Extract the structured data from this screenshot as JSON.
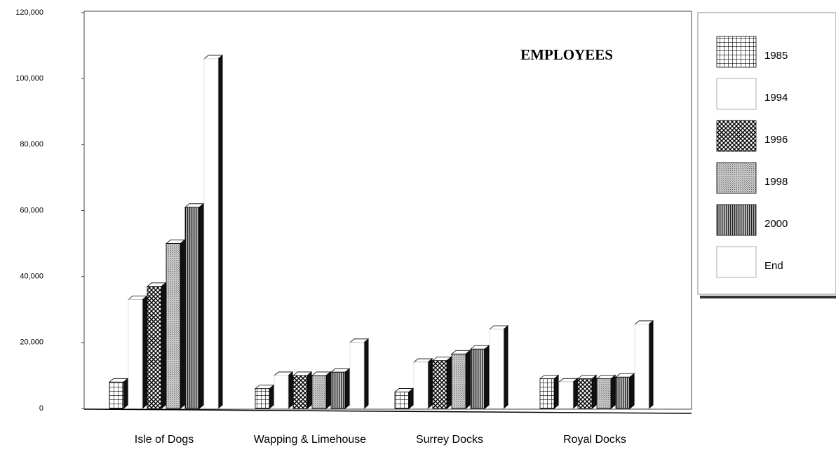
{
  "chart_data": {
    "type": "bar3d",
    "title": "EMPLOYEES",
    "categories": [
      "Isle of Dogs",
      "Wapping & Limehouse",
      "Surrey Docks",
      "Royal Docks"
    ],
    "series": [
      {
        "name": "1985",
        "pattern": "grid",
        "values": [
          8000,
          6000,
          5000,
          9000
        ]
      },
      {
        "name": "1994",
        "pattern": "none",
        "values": [
          33000,
          10000,
          14000,
          8000
        ]
      },
      {
        "name": "1996",
        "pattern": "crosshatch",
        "values": [
          37000,
          10000,
          14500,
          9000
        ]
      },
      {
        "name": "1998",
        "pattern": "stipple",
        "values": [
          50000,
          10000,
          16500,
          9000
        ]
      },
      {
        "name": "2000",
        "pattern": "vstripes",
        "values": [
          61000,
          11000,
          18000,
          9500
        ]
      },
      {
        "name": "End",
        "pattern": "none",
        "values": [
          106000,
          20000,
          24000,
          25500
        ]
      }
    ],
    "ylim": [
      0,
      120000
    ],
    "yticks": [
      0,
      {
        "value": 20000,
        "label": "20,000"
      },
      {
        "value": 40000,
        "label": "40,000"
      },
      {
        "value": 60000,
        "label": "60,000"
      },
      {
        "value": 80000,
        "label": "80,000"
      },
      {
        "value": 100000,
        "label": "100,000"
      },
      {
        "value": 120000,
        "label": "120,000"
      }
    ]
  }
}
